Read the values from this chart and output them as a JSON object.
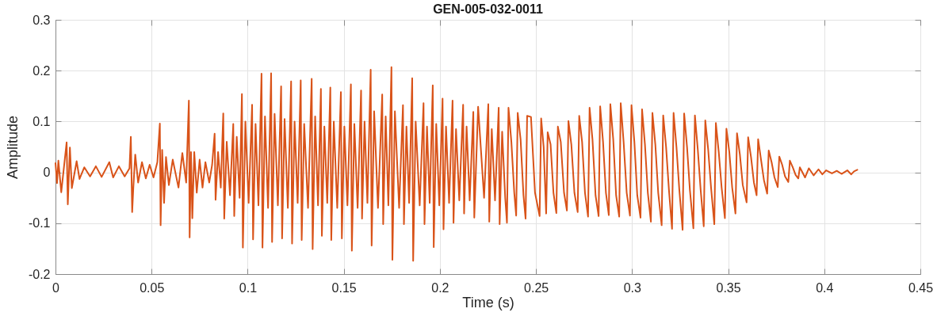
{
  "chart_data": {
    "type": "line",
    "title": "GEN-005-032-0011",
    "xlabel": "Time (s)",
    "ylabel": "Amplitude",
    "xlim": [
      0,
      0.45
    ],
    "ylim": [
      -0.2,
      0.3
    ],
    "xticks": [
      0,
      0.05,
      0.1,
      0.15,
      0.2,
      0.25,
      0.3,
      0.35,
      0.4,
      0.45
    ],
    "yticks": [
      -0.2,
      -0.1,
      0,
      0.1,
      0.2,
      0.3
    ],
    "grid": true,
    "x": [
      0.0,
      0.0008,
      0.0015,
      0.003,
      0.0058,
      0.0064,
      0.0075,
      0.0085,
      0.011,
      0.0125,
      0.015,
      0.018,
      0.021,
      0.024,
      0.028,
      0.03,
      0.033,
      0.036,
      0.0385,
      0.0392,
      0.0399,
      0.0405,
      0.0415,
      0.043,
      0.045,
      0.047,
      0.049,
      0.051,
      0.053,
      0.0543,
      0.0547,
      0.0555,
      0.0565,
      0.0575,
      0.059,
      0.061,
      0.064,
      0.066,
      0.068,
      0.0694,
      0.0698,
      0.0705,
      0.0712,
      0.0722,
      0.0735,
      0.075,
      0.0765,
      0.078,
      0.08,
      0.0815,
      0.0828,
      0.0833,
      0.0846,
      0.086,
      0.0873,
      0.0878,
      0.0891,
      0.0908,
      0.0925,
      0.093,
      0.0943,
      0.0958,
      0.097,
      0.0975,
      0.0988,
      0.1005,
      0.1023,
      0.1028,
      0.1041,
      0.1056,
      0.1072,
      0.1077,
      0.109,
      0.1106,
      0.1122,
      0.1127,
      0.114,
      0.1157,
      0.1174,
      0.1179,
      0.1192,
      0.1209,
      0.1226,
      0.1231,
      0.1244,
      0.126,
      0.1276,
      0.1281,
      0.1294,
      0.1314,
      0.1333,
      0.1338,
      0.1351,
      0.1366,
      0.1381,
      0.1386,
      0.1399,
      0.1414,
      0.143,
      0.1435,
      0.1448,
      0.1466,
      0.1485,
      0.149,
      0.1503,
      0.1519,
      0.1537,
      0.1542,
      0.1555,
      0.1572,
      0.159,
      0.1595,
      0.1608,
      0.1623,
      0.164,
      0.1645,
      0.1658,
      0.1678,
      0.17,
      0.1705,
      0.1718,
      0.1732,
      0.1748,
      0.1753,
      0.1766,
      0.1788,
      0.1808,
      0.1813,
      0.1826,
      0.184,
      0.1856,
      0.1861,
      0.1874,
      0.1895,
      0.1915,
      0.192,
      0.1933,
      0.1947,
      0.1963,
      0.1968,
      0.1981,
      0.1997,
      0.2014,
      0.2019,
      0.2032,
      0.2048,
      0.2066,
      0.2071,
      0.2084,
      0.2101,
      0.2121,
      0.2126,
      0.2139,
      0.2155,
      0.2174,
      0.2179,
      0.2199,
      0.223,
      0.2252,
      0.2257,
      0.227,
      0.2287,
      0.2306,
      0.2311,
      0.2324,
      0.234,
      0.2349,
      0.2357,
      0.2372,
      0.2387,
      0.2397,
      0.2405,
      0.242,
      0.2435,
      0.2446,
      0.2454,
      0.2474,
      0.2495,
      0.2519,
      0.2527,
      0.254,
      0.2553,
      0.2561,
      0.2576,
      0.2591,
      0.2606,
      0.2614,
      0.2629,
      0.2646,
      0.2661,
      0.2669,
      0.2684,
      0.27,
      0.2717,
      0.2725,
      0.274,
      0.2755,
      0.2771,
      0.2779,
      0.2794,
      0.281,
      0.2826,
      0.2834,
      0.2849,
      0.2864,
      0.2879,
      0.2887,
      0.2902,
      0.2917,
      0.2933,
      0.2941,
      0.2956,
      0.2972,
      0.2989,
      0.2997,
      0.3012,
      0.3027,
      0.3044,
      0.3052,
      0.3067,
      0.3082,
      0.3098,
      0.3106,
      0.3121,
      0.3136,
      0.3154,
      0.3162,
      0.3177,
      0.3192,
      0.3208,
      0.3216,
      0.3231,
      0.3246,
      0.3263,
      0.3271,
      0.3286,
      0.3301,
      0.3319,
      0.3327,
      0.3342,
      0.3357,
      0.3373,
      0.3381,
      0.3396,
      0.3411,
      0.3428,
      0.3436,
      0.3451,
      0.3466,
      0.3483,
      0.3491,
      0.3506,
      0.3521,
      0.3538,
      0.3546,
      0.3561,
      0.3576,
      0.3596,
      0.3604,
      0.3619,
      0.3634,
      0.3648,
      0.3656,
      0.3671,
      0.3686,
      0.3703,
      0.3711,
      0.3726,
      0.3741,
      0.3758,
      0.3766,
      0.3781,
      0.3796,
      0.3813,
      0.3821,
      0.3836,
      0.3851,
      0.3865,
      0.3873,
      0.39,
      0.392,
      0.3945,
      0.397,
      0.399,
      0.401,
      0.404,
      0.4065,
      0.409,
      0.412,
      0.414,
      0.4155,
      0.4172
    ],
    "series": [
      {
        "color": "#d95319",
        "values": [
          0.018,
          -0.021,
          0.023,
          -0.039,
          0.059,
          -0.063,
          0.049,
          -0.031,
          0.022,
          -0.013,
          0.01,
          -0.008,
          0.012,
          -0.009,
          0.02,
          -0.01,
          0.012,
          -0.008,
          0.008,
          0.07,
          -0.078,
          -0.03,
          0.035,
          -0.02,
          0.02,
          -0.012,
          0.015,
          -0.01,
          0.02,
          0.096,
          -0.104,
          0.044,
          -0.06,
          0.03,
          -0.025,
          0.025,
          -0.03,
          0.038,
          -0.02,
          0.141,
          -0.128,
          0.04,
          -0.09,
          0.04,
          -0.04,
          0.025,
          -0.03,
          0.02,
          -0.02,
          0.015,
          0.076,
          -0.054,
          0.04,
          -0.03,
          0.116,
          -0.091,
          0.06,
          -0.045,
          0.095,
          -0.086,
          0.07,
          -0.05,
          0.154,
          -0.148,
          0.1,
          -0.06,
          0.133,
          -0.132,
          0.095,
          -0.065,
          0.194,
          -0.148,
          0.11,
          -0.07,
          0.195,
          -0.137,
          0.115,
          -0.065,
          0.169,
          -0.13,
          0.105,
          -0.07,
          0.179,
          -0.14,
          0.1,
          -0.06,
          0.181,
          -0.133,
          0.095,
          -0.07,
          0.184,
          -0.151,
          0.11,
          -0.065,
          0.164,
          -0.125,
          0.09,
          -0.06,
          0.167,
          -0.133,
          0.1,
          -0.07,
          0.158,
          -0.13,
          0.09,
          -0.065,
          0.173,
          -0.154,
          0.095,
          -0.07,
          0.161,
          -0.091,
          0.1,
          -0.06,
          0.202,
          -0.144,
          0.12,
          -0.07,
          0.153,
          -0.102,
          0.11,
          -0.065,
          0.207,
          -0.172,
          0.12,
          -0.07,
          0.132,
          -0.102,
          0.09,
          -0.06,
          0.185,
          -0.174,
          0.1,
          -0.065,
          0.136,
          -0.102,
          0.09,
          -0.06,
          0.171,
          -0.147,
          0.095,
          -0.065,
          0.145,
          -0.112,
          0.09,
          -0.06,
          0.141,
          -0.099,
          0.085,
          -0.055,
          0.133,
          -0.081,
          0.09,
          -0.055,
          0.119,
          -0.089,
          0.129,
          -0.05,
          0.134,
          -0.097,
          0.085,
          -0.055,
          0.127,
          -0.102,
          0.08,
          -0.05,
          -0.099,
          0.127,
          0.06,
          -0.04,
          -0.085,
          0.117,
          0.065,
          -0.045,
          -0.091,
          0.111,
          0.109,
          -0.04,
          -0.086,
          0.106,
          0.05,
          -0.081,
          0.079,
          0.055,
          -0.04,
          -0.08,
          0.09,
          0.06,
          -0.04,
          -0.075,
          0.101,
          0.055,
          -0.04,
          -0.078,
          0.111,
          0.06,
          -0.04,
          -0.087,
          0.127,
          0.065,
          -0.045,
          -0.086,
          0.13,
          0.06,
          -0.04,
          -0.084,
          0.134,
          0.065,
          -0.045,
          -0.087,
          0.136,
          0.06,
          -0.04,
          -0.085,
          0.132,
          0.06,
          -0.045,
          -0.089,
          0.124,
          0.055,
          -0.04,
          -0.097,
          0.117,
          0.055,
          -0.04,
          -0.104,
          0.112,
          0.05,
          -0.035,
          -0.111,
          0.117,
          0.05,
          -0.035,
          -0.113,
          0.116,
          0.05,
          -0.035,
          -0.11,
          0.112,
          0.045,
          -0.035,
          -0.106,
          0.102,
          0.045,
          -0.03,
          -0.102,
          0.097,
          0.04,
          -0.03,
          -0.09,
          0.086,
          0.04,
          -0.03,
          -0.081,
          0.077,
          0.035,
          -0.025,
          -0.059,
          0.069,
          0.03,
          -0.02,
          -0.045,
          0.065,
          0.025,
          -0.015,
          -0.042,
          0.043,
          0.02,
          -0.01,
          -0.029,
          0.031,
          0.015,
          -0.008,
          -0.019,
          0.023,
          0.01,
          -0.005,
          -0.012,
          0.01,
          -0.01,
          0.008,
          -0.006,
          0.006,
          -0.004,
          0.004,
          -0.002,
          0.003,
          -0.003,
          0.004,
          -0.004,
          0.002,
          0.005
        ]
      }
    ]
  }
}
